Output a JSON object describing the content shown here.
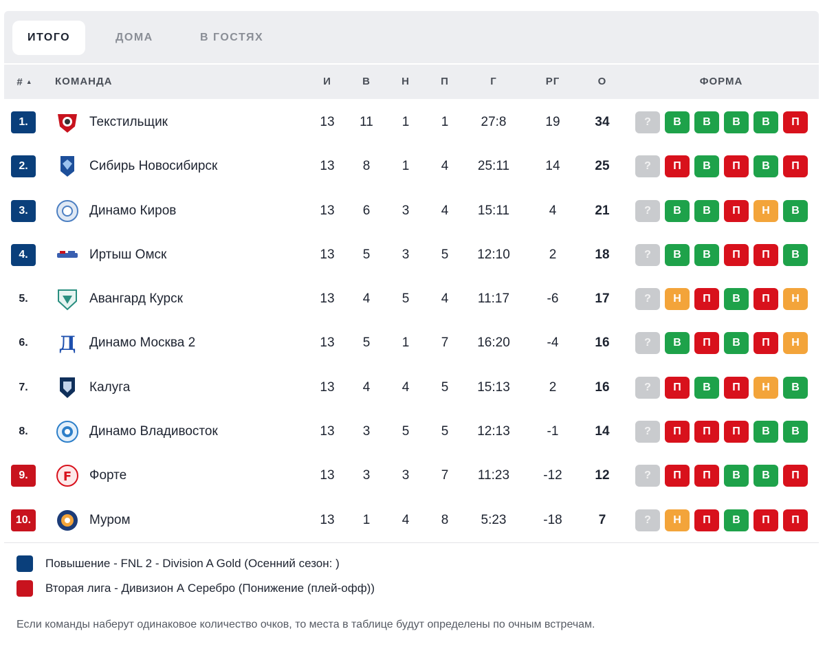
{
  "tabs": [
    {
      "label": "ИТОГО",
      "active": true
    },
    {
      "label": "ДОМА",
      "active": false
    },
    {
      "label": "В ГОСТЯХ",
      "active": false
    }
  ],
  "headers": {
    "pos": "#",
    "team": "КОМАНДА",
    "played": "И",
    "won": "В",
    "drawn": "Н",
    "lost": "П",
    "goals": "Г",
    "diff": "РГ",
    "points": "О",
    "form": "ФОРМА"
  },
  "colors": {
    "promotion": "#0a3f7b",
    "relegation": "#c8131e",
    "win": "#1ea24a",
    "loss": "#d8111c",
    "draw": "#f3a43a",
    "unknown": "#c9cbce"
  },
  "rows": [
    {
      "pos": "1.",
      "zone": "promo",
      "logo": "tekstilshchik-logo",
      "team": "Текстильщик",
      "played": "13",
      "won": "11",
      "drawn": "1",
      "lost": "1",
      "goals": "27:8",
      "diff": "19",
      "points": "34",
      "form": [
        "?",
        "В",
        "В",
        "В",
        "В",
        "П"
      ]
    },
    {
      "pos": "2.",
      "zone": "promo",
      "logo": "sibir-logo",
      "team": "Сибирь Новосибирск",
      "played": "13",
      "won": "8",
      "drawn": "1",
      "lost": "4",
      "goals": "25:11",
      "diff": "14",
      "points": "25",
      "form": [
        "?",
        "П",
        "В",
        "П",
        "В",
        "П"
      ]
    },
    {
      "pos": "3.",
      "zone": "promo",
      "logo": "dinamo-kirov-logo",
      "team": "Динамо Киров",
      "played": "13",
      "won": "6",
      "drawn": "3",
      "lost": "4",
      "goals": "15:11",
      "diff": "4",
      "points": "21",
      "form": [
        "?",
        "В",
        "В",
        "П",
        "Н",
        "В"
      ]
    },
    {
      "pos": "4.",
      "zone": "promo",
      "logo": "irtysh-logo",
      "team": "Иртыш Омск",
      "played": "13",
      "won": "5",
      "drawn": "3",
      "lost": "5",
      "goals": "12:10",
      "diff": "2",
      "points": "18",
      "form": [
        "?",
        "В",
        "В",
        "П",
        "П",
        "В"
      ]
    },
    {
      "pos": "5.",
      "zone": "",
      "logo": "avangard-logo",
      "team": "Авангард Курск",
      "played": "13",
      "won": "4",
      "drawn": "5",
      "lost": "4",
      "goals": "11:17",
      "diff": "-6",
      "points": "17",
      "form": [
        "?",
        "Н",
        "П",
        "В",
        "П",
        "Н"
      ]
    },
    {
      "pos": "6.",
      "zone": "",
      "logo": "dinamo-moskva-logo",
      "team": "Динамо Москва 2",
      "played": "13",
      "won": "5",
      "drawn": "1",
      "lost": "7",
      "goals": "16:20",
      "diff": "-4",
      "points": "16",
      "form": [
        "?",
        "В",
        "П",
        "В",
        "П",
        "Н"
      ]
    },
    {
      "pos": "7.",
      "zone": "",
      "logo": "kaluga-logo",
      "team": "Калуга",
      "played": "13",
      "won": "4",
      "drawn": "4",
      "lost": "5",
      "goals": "15:13",
      "diff": "2",
      "points": "16",
      "form": [
        "?",
        "П",
        "В",
        "П",
        "Н",
        "В"
      ]
    },
    {
      "pos": "8.",
      "zone": "",
      "logo": "dinamo-vladivostok-logo",
      "team": "Динамо Владивосток",
      "played": "13",
      "won": "3",
      "drawn": "5",
      "lost": "5",
      "goals": "12:13",
      "diff": "-1",
      "points": "14",
      "form": [
        "?",
        "П",
        "П",
        "П",
        "В",
        "В"
      ]
    },
    {
      "pos": "9.",
      "zone": "releg",
      "logo": "forte-logo",
      "team": "Форте",
      "played": "13",
      "won": "3",
      "drawn": "3",
      "lost": "7",
      "goals": "11:23",
      "diff": "-12",
      "points": "12",
      "form": [
        "?",
        "П",
        "П",
        "В",
        "В",
        "П"
      ]
    },
    {
      "pos": "10.",
      "zone": "releg",
      "logo": "murom-logo",
      "team": "Муром",
      "played": "13",
      "won": "1",
      "drawn": "4",
      "lost": "8",
      "goals": "5:23",
      "diff": "-18",
      "points": "7",
      "form": [
        "?",
        "Н",
        "П",
        "В",
        "П",
        "П"
      ]
    }
  ],
  "legend": [
    {
      "zone": "promo",
      "text": "Повышение - FNL 2 - Division A Gold (Осенний сезон: )"
    },
    {
      "zone": "releg",
      "text": "Вторая лига - Дивизион А Серебро (Понижение (плей-офф))"
    }
  ],
  "note": "Если команды наберут одинаковое количество очков, то места в таблице будут определены по очным встречам."
}
